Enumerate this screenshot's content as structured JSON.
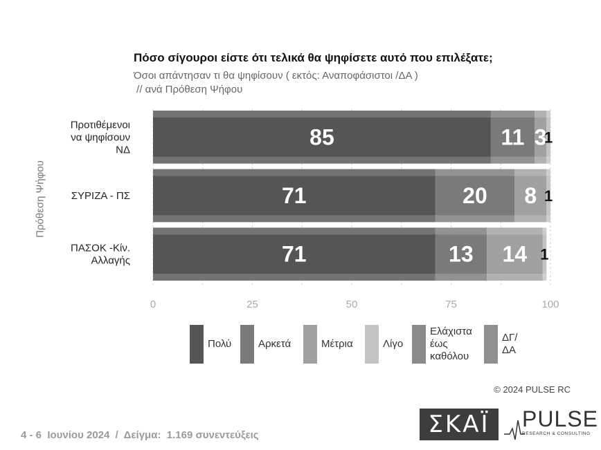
{
  "title": "Πόσο σίγουροι είστε ότι τελικά θα ψηφίσετε αυτό που επιλέξατε;",
  "subtitle": "Όσοι απάντησαν τι θα ψηφίσουν ( εκτός: Αναποφάσιστοι /ΔΑ )\n // ανά Πρόθεση Ψήφου",
  "copyright": "© 2024 PULSE RC",
  "footer": "4 - 6  Ιουνίου 2024  /  Δείγμα:  1.169 συνεντεύξεις",
  "logos": {
    "skai": "ΣΚΑΪ",
    "pulse": "PULSE",
    "pulse_sub": "RESEARCH & CONSULTING"
  },
  "chart_data": {
    "type": "bar",
    "orientation": "horizontal",
    "stacked": true,
    "title": "Πόσο σίγουροι είστε ότι τελικά θα ψηφίσετε αυτό που επιλέξατε;",
    "ylabel": "Πρόθεση Ψήφου",
    "xlim": [
      0,
      100
    ],
    "xticks": [
      0,
      25,
      50,
      75,
      100
    ],
    "grid": true,
    "legend_position": "bottom",
    "categories": [
      "Προτιθέμενοι\nνα ψηφίσουν\nΝΔ",
      "ΣΥΡΙΖΑ - ΠΣ",
      "ΠΑΣΟΚ -Κίν.\nΑλλαγής"
    ],
    "series": [
      {
        "name": "Πολύ",
        "color": "#555555",
        "values": [
          85,
          71,
          71
        ],
        "labels": [
          "85",
          "71",
          "71"
        ]
      },
      {
        "name": "Αρκετά",
        "color": "#7a7a7a",
        "values": [
          11,
          20,
          13
        ],
        "labels": [
          "11",
          "20",
          "13"
        ]
      },
      {
        "name": "Μέτρια",
        "color": "#a0a0a0",
        "values": [
          3,
          8,
          14
        ],
        "labels": [
          "3",
          "8",
          "14"
        ]
      },
      {
        "name": "Λίγο",
        "color": "#c4c4c4",
        "values": [
          1,
          1,
          1
        ],
        "labels": [
          "1",
          "1",
          "1"
        ]
      },
      {
        "name": "Ελάχιστα\nέως\nκαθόλου",
        "color": "#8a8a8a",
        "values": [
          0,
          0,
          0
        ],
        "labels": [
          "",
          "",
          ""
        ]
      },
      {
        "name": "ΔΓ/\nΔΑ",
        "color": "#909090",
        "values": [
          0,
          0,
          0
        ],
        "labels": [
          "",
          "",
          ""
        ]
      }
    ]
  }
}
